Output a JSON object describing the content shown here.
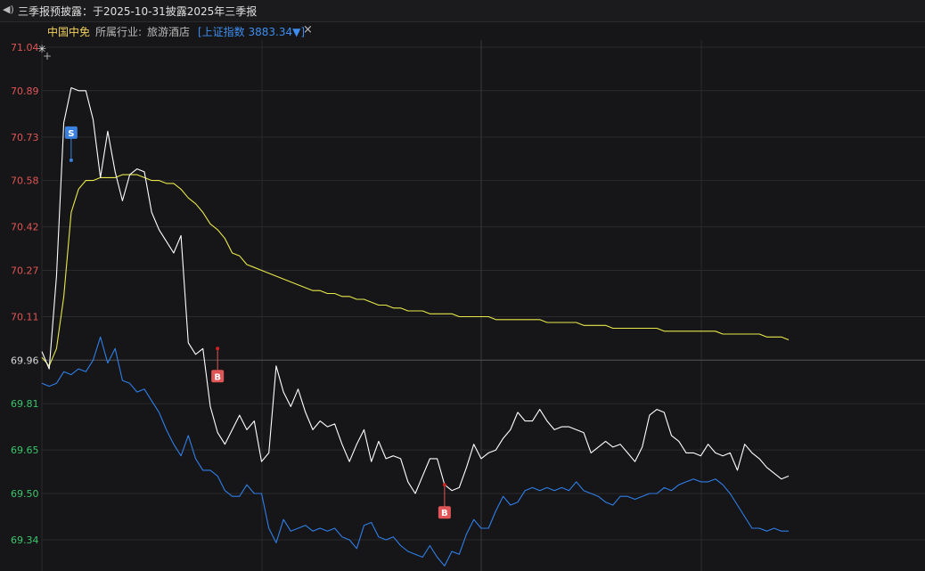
{
  "header": {
    "notice_text": "三季报预披露：于2025-10-31披露2025年三季报"
  },
  "info": {
    "stock_name": "中国中免",
    "industry_label": "所属行业:",
    "industry_value": "旅游酒店",
    "index_text": "[上证指数 3883.34▼]",
    "close_symbol": "×"
  },
  "chart_data": {
    "type": "line",
    "y_ticks": [
      "71.04",
      "70.89",
      "70.73",
      "70.58",
      "70.42",
      "70.27",
      "70.11",
      "69.96",
      "69.81",
      "69.65",
      "69.50",
      "69.34"
    ],
    "ylim": [
      69.24,
      71.04
    ],
    "reference_price": 69.96,
    "colors": {
      "price": "#ffffff",
      "avg": "#e8e84a",
      "index": "#2f7fe8",
      "up": "#e05555",
      "down": "#39c66b",
      "ref": "#d8d8d8"
    },
    "series": [
      {
        "key": "price",
        "values": [
          69.99,
          69.93,
          70.25,
          70.78,
          70.9,
          70.89,
          70.89,
          70.79,
          70.59,
          70.75,
          70.61,
          70.51,
          70.6,
          70.62,
          70.61,
          70.47,
          70.41,
          70.37,
          70.33,
          70.39,
          70.02,
          69.98,
          70.0,
          69.8,
          69.71,
          69.67,
          69.72,
          69.77,
          69.72,
          69.75,
          69.61,
          69.64,
          69.94,
          69.85,
          69.8,
          69.86,
          69.78,
          69.72,
          69.75,
          69.73,
          69.74,
          69.67,
          69.61,
          69.67,
          69.72,
          69.61,
          69.68,
          69.62,
          69.63,
          69.62,
          69.54,
          69.5,
          69.56,
          69.62,
          69.62,
          69.53,
          69.51,
          69.52,
          69.59,
          69.67,
          69.62,
          69.64,
          69.65,
          69.69,
          69.72,
          69.78,
          69.75,
          69.75,
          69.79,
          69.75,
          69.72,
          69.73,
          69.73,
          69.72,
          69.71,
          69.64,
          69.66,
          69.68,
          69.66,
          69.67,
          69.64,
          69.61,
          69.66,
          69.77,
          69.79,
          69.78,
          69.7,
          69.68,
          69.64,
          69.64,
          69.63,
          69.67,
          69.64,
          69.63,
          69.64,
          69.58,
          69.67,
          69.64,
          69.62,
          69.59,
          69.57,
          69.55,
          69.56
        ]
      },
      {
        "key": "avg",
        "values": [
          69.97,
          69.94,
          70.0,
          70.18,
          70.47,
          70.55,
          70.58,
          70.58,
          70.59,
          70.59,
          70.59,
          70.6,
          70.6,
          70.6,
          70.59,
          70.58,
          70.58,
          70.57,
          70.57,
          70.55,
          70.52,
          70.5,
          70.47,
          70.43,
          70.41,
          70.38,
          70.33,
          70.32,
          70.29,
          70.28,
          70.27,
          70.26,
          70.25,
          70.24,
          70.23,
          70.22,
          70.21,
          70.2,
          70.2,
          70.19,
          70.19,
          70.18,
          70.18,
          70.17,
          70.17,
          70.16,
          70.15,
          70.15,
          70.14,
          70.14,
          70.13,
          70.13,
          70.13,
          70.12,
          70.12,
          70.12,
          70.12,
          70.11,
          70.11,
          70.11,
          70.11,
          70.11,
          70.1,
          70.1,
          70.1,
          70.1,
          70.1,
          70.1,
          70.1,
          70.09,
          70.09,
          70.09,
          70.09,
          70.09,
          70.08,
          70.08,
          70.08,
          70.08,
          70.07,
          70.07,
          70.07,
          70.07,
          70.07,
          70.07,
          70.07,
          70.06,
          70.06,
          70.06,
          70.06,
          70.06,
          70.06,
          70.06,
          70.06,
          70.05,
          70.05,
          70.05,
          70.05,
          70.05,
          70.05,
          70.04,
          70.04,
          70.04,
          70.03
        ]
      },
      {
        "key": "index",
        "values": [
          69.88,
          69.87,
          69.88,
          69.92,
          69.91,
          69.93,
          69.92,
          69.96,
          70.04,
          69.95,
          70.0,
          69.89,
          69.88,
          69.85,
          69.86,
          69.82,
          69.78,
          69.72,
          69.67,
          69.63,
          69.7,
          69.62,
          69.58,
          69.58,
          69.56,
          69.51,
          69.49,
          69.49,
          69.53,
          69.5,
          69.5,
          69.38,
          69.33,
          69.41,
          69.37,
          69.38,
          69.39,
          69.37,
          69.38,
          69.37,
          69.38,
          69.35,
          69.34,
          69.31,
          69.39,
          69.4,
          69.35,
          69.34,
          69.35,
          69.32,
          69.3,
          69.29,
          69.28,
          69.32,
          69.28,
          69.25,
          69.3,
          69.29,
          69.36,
          69.41,
          69.38,
          69.38,
          69.44,
          69.49,
          69.46,
          69.47,
          69.51,
          69.52,
          69.51,
          69.52,
          69.51,
          69.52,
          69.51,
          69.54,
          69.51,
          69.5,
          69.49,
          69.47,
          69.46,
          69.49,
          69.49,
          69.48,
          69.49,
          69.5,
          69.5,
          69.52,
          69.51,
          69.53,
          69.54,
          69.55,
          69.54,
          69.54,
          69.55,
          69.53,
          69.5,
          69.46,
          69.42,
          69.38,
          69.38,
          69.37,
          69.38,
          69.37,
          69.37
        ]
      }
    ],
    "markers": [
      {
        "label": "S",
        "type": "sell",
        "index": 4,
        "value": 70.65,
        "color": "#3b82e0"
      },
      {
        "label": "B",
        "type": "buy",
        "index": 24,
        "value": 70.0,
        "color": "#e05555"
      },
      {
        "label": "B",
        "type": "buy",
        "index": 55,
        "value": 69.53,
        "color": "#e05555"
      }
    ]
  }
}
